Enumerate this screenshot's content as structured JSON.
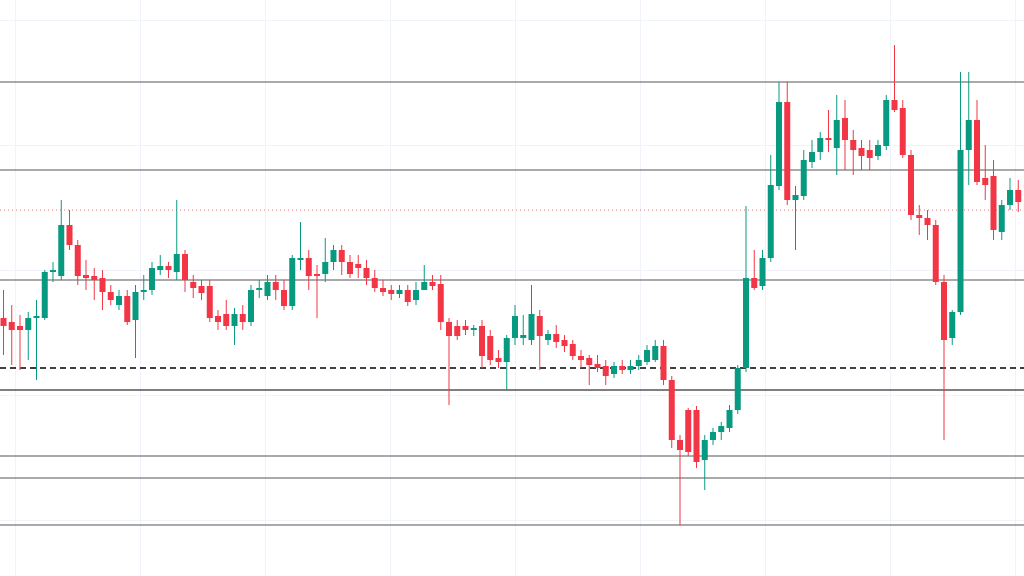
{
  "chart_data": {
    "type": "candlestick",
    "ylim": [
      0,
      576
    ],
    "up_color": "#089981",
    "down_color": "#f23645",
    "open": [
      258,
      254,
      250,
      246,
      258,
      258,
      304,
      300,
      351,
      331,
      301,
      300,
      298,
      284,
      271,
      280,
      256,
      284,
      286,
      306,
      310,
      304,
      322,
      294,
      290,
      290,
      260,
      262,
      250,
      262,
      254,
      286,
      280,
      294,
      286,
      270,
      316,
      318,
      302,
      302,
      314,
      326,
      314,
      312,
      308,
      298,
      288,
      286,
      282,
      286,
      276,
      286,
      294,
      292,
      254,
      250,
      250,
      246,
      250,
      240,
      218,
      214,
      238,
      238,
      236,
      260,
      236,
      242,
      236,
      232,
      220,
      218,
      212,
      210,
      202,
      210,
      206,
      210,
      214,
      216,
      230,
      196,
      136,
      166,
      166,
      116,
      136,
      144,
      148,
      166,
      208,
      298,
      290,
      318,
      390,
      474,
      376,
      380,
      414,
      424,
      438,
      428,
      458,
      436,
      428,
      426,
      420,
      430,
      476,
      468,
      421,
      361,
      358,
      351,
      294,
      238,
      264,
      426,
      456,
      398,
      400,
      344,
      371,
      386
    ],
    "high": [
      286,
      271,
      261,
      264,
      276,
      306,
      314,
      376,
      366,
      336,
      316,
      308,
      306,
      291,
      286,
      286,
      291,
      301,
      314,
      321,
      314,
      376,
      326,
      301,
      296,
      296,
      266,
      276,
      268,
      271,
      291,
      296,
      301,
      301,
      296,
      321,
      354,
      326,
      311,
      338,
      331,
      331,
      321,
      321,
      316,
      306,
      296,
      291,
      291,
      291,
      294,
      311,
      301,
      301,
      258,
      256,
      256,
      251,
      256,
      246,
      226,
      241,
      271,
      261,
      291,
      266,
      246,
      251,
      241,
      236,
      226,
      221,
      221,
      216,
      214,
      216,
      216,
      221,
      231,
      236,
      236,
      200,
      141,
      168,
      170,
      141,
      148,
      154,
      171,
      211,
      370,
      326,
      326,
      421,
      494,
      494,
      390,
      426,
      436,
      444,
      466,
      481,
      476,
      446,
      436,
      436,
      436,
      481,
      531,
      476,
      426,
      371,
      366,
      356,
      301,
      266,
      504,
      504,
      476,
      431,
      416,
      376,
      398,
      396
    ],
    "low": [
      221,
      211,
      206,
      216,
      196,
      256,
      294,
      296,
      326,
      291,
      286,
      276,
      266,
      271,
      266,
      251,
      218,
      276,
      281,
      301,
      298,
      296,
      284,
      278,
      276,
      254,
      246,
      246,
      231,
      246,
      250,
      278,
      276,
      276,
      266,
      266,
      306,
      286,
      258,
      294,
      306,
      301,
      298,
      298,
      291,
      284,
      280,
      276,
      278,
      270,
      271,
      288,
      286,
      246,
      171,
      236,
      241,
      240,
      208,
      211,
      208,
      186,
      231,
      231,
      231,
      206,
      231,
      228,
      224,
      216,
      208,
      191,
      204,
      191,
      198,
      202,
      202,
      206,
      211,
      214,
      191,
      128,
      51,
      120,
      108,
      86,
      131,
      136,
      144,
      162,
      204,
      286,
      286,
      314,
      386,
      371,
      326,
      376,
      408,
      416,
      424,
      401,
      406,
      401,
      406,
      406,
      416,
      426,
      464,
      418,
      356,
      341,
      336,
      291,
      136,
      231,
      261,
      391,
      391,
      376,
      336,
      336,
      366,
      364
    ],
    "close": [
      250,
      246,
      246,
      258,
      260,
      304,
      306,
      351,
      331,
      300,
      298,
      296,
      284,
      276,
      280,
      254,
      284,
      286,
      308,
      310,
      306,
      322,
      296,
      288,
      283,
      258,
      254,
      250,
      262,
      254,
      286,
      288,
      294,
      286,
      270,
      318,
      318,
      300,
      300,
      314,
      326,
      314,
      302,
      308,
      298,
      288,
      284,
      282,
      286,
      274,
      286,
      294,
      290,
      254,
      240,
      240,
      246,
      248,
      220,
      216,
      214,
      238,
      260,
      241,
      262,
      240,
      242,
      234,
      230,
      220,
      216,
      211,
      208,
      200,
      210,
      206,
      210,
      216,
      226,
      230,
      196,
      136,
      126,
      124,
      114,
      136,
      144,
      150,
      166,
      208,
      298,
      288,
      318,
      391,
      474,
      376,
      381,
      416,
      424,
      438,
      436,
      456,
      436,
      426,
      420,
      418,
      431,
      476,
      466,
      421,
      361,
      358,
      351,
      294,
      236,
      264,
      426,
      456,
      394,
      391,
      346,
      371,
      386,
      374
    ],
    "levels": [
      {
        "value": 494,
        "style": "solid"
      },
      {
        "value": 406,
        "style": "solid"
      },
      {
        "value": 296,
        "style": "solid"
      },
      {
        "value": 208,
        "style": "dashed"
      },
      {
        "value": 186,
        "style": "bold"
      },
      {
        "value": 120,
        "style": "solid"
      },
      {
        "value": 98,
        "style": "solid"
      },
      {
        "value": 51,
        "style": "solid"
      }
    ],
    "price_line": {
      "value": 366,
      "color": "#f23645"
    }
  }
}
